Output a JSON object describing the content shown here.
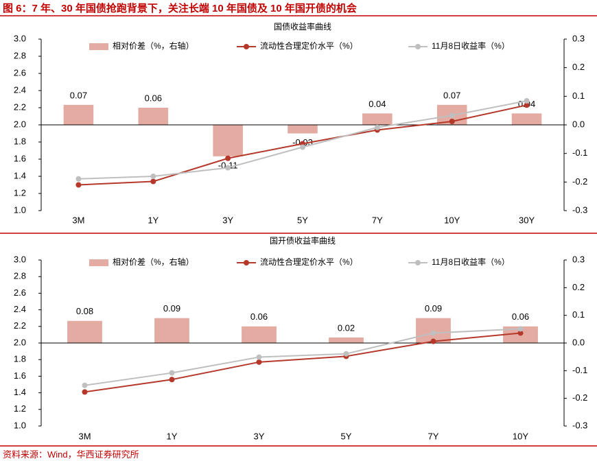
{
  "header": {
    "title": "图 6：7 年、30 年国债抢跑背景下，关注长端 10 年国债及 10 年国开债的机会"
  },
  "source": "资料来源：Wind，华西证券研究所",
  "chart_data": [
    {
      "type": "bar-line",
      "title": "国债收益率曲线",
      "categories": [
        "3M",
        "1Y",
        "3Y",
        "5Y",
        "7Y",
        "10Y",
        "30Y"
      ],
      "series": [
        {
          "name": "相对价差（%，右轴）",
          "type": "bar",
          "axis": "y2",
          "color": "#e3aba2",
          "values": [
            0.07,
            0.06,
            -0.11,
            -0.03,
            0.04,
            0.07,
            0.04
          ]
        },
        {
          "name": "流动性合理定价水平（%）",
          "type": "line",
          "color": "#b5382a",
          "values": [
            1.3,
            1.34,
            1.61,
            1.78,
            1.94,
            2.04,
            2.23
          ]
        },
        {
          "name": "11月8日收益率（%）",
          "type": "line",
          "color": "#bfbfbf",
          "values": [
            1.37,
            1.4,
            1.5,
            1.74,
            1.97,
            2.11,
            2.28
          ]
        }
      ],
      "ylim": [
        1.0,
        3.0
      ],
      "yticks": [
        {
          "value": 1.0,
          "label": "1.0"
        },
        1.2,
        1.4,
        1.6,
        1.8,
        {
          "value": 2.0,
          "label": "2.0"
        },
        2.2,
        2.4,
        2.6,
        2.8,
        {
          "value": 3.0,
          "label": "3.0"
        }
      ],
      "y2lim": [
        -0.3,
        0.3
      ],
      "y2ticks": [
        -0.3,
        -0.2,
        -0.1,
        {
          "value": 0,
          "label": "0.0"
        },
        0.1,
        0.2,
        0.3
      ],
      "legend": "top"
    },
    {
      "type": "bar-line",
      "title": "国开债收益率曲线",
      "categories": [
        "3M",
        "1Y",
        "3Y",
        "5Y",
        "7Y",
        "10Y"
      ],
      "series": [
        {
          "name": "相对价差（%，右轴）",
          "type": "bar",
          "axis": "y2",
          "color": "#e3aba2",
          "values": [
            0.08,
            0.09,
            0.06,
            0.02,
            0.09,
            0.06
          ]
        },
        {
          "name": "流动性合理定价水平（%）",
          "type": "line",
          "color": "#b5382a",
          "values": [
            1.41,
            1.56,
            1.77,
            1.84,
            2.02,
            2.12
          ]
        },
        {
          "name": "11月8日收益率（%）",
          "type": "line",
          "color": "#bfbfbf",
          "values": [
            1.49,
            1.64,
            1.83,
            1.87,
            2.12,
            2.17
          ]
        }
      ],
      "ylim": [
        1.0,
        3.0
      ],
      "yticks": [
        {
          "value": 1.0,
          "label": "1.0"
        },
        1.2,
        1.4,
        1.6,
        1.8,
        {
          "value": 2.0,
          "label": "2.0"
        },
        2.2,
        2.4,
        2.6,
        2.8,
        {
          "value": 3.0,
          "label": "3.0"
        }
      ],
      "y2lim": [
        -0.3,
        0.3
      ],
      "y2ticks": [
        -0.3,
        -0.2,
        -0.1,
        {
          "value": 0,
          "label": "0.0"
        },
        0.1,
        0.2,
        0.3
      ],
      "legend": "top"
    }
  ]
}
